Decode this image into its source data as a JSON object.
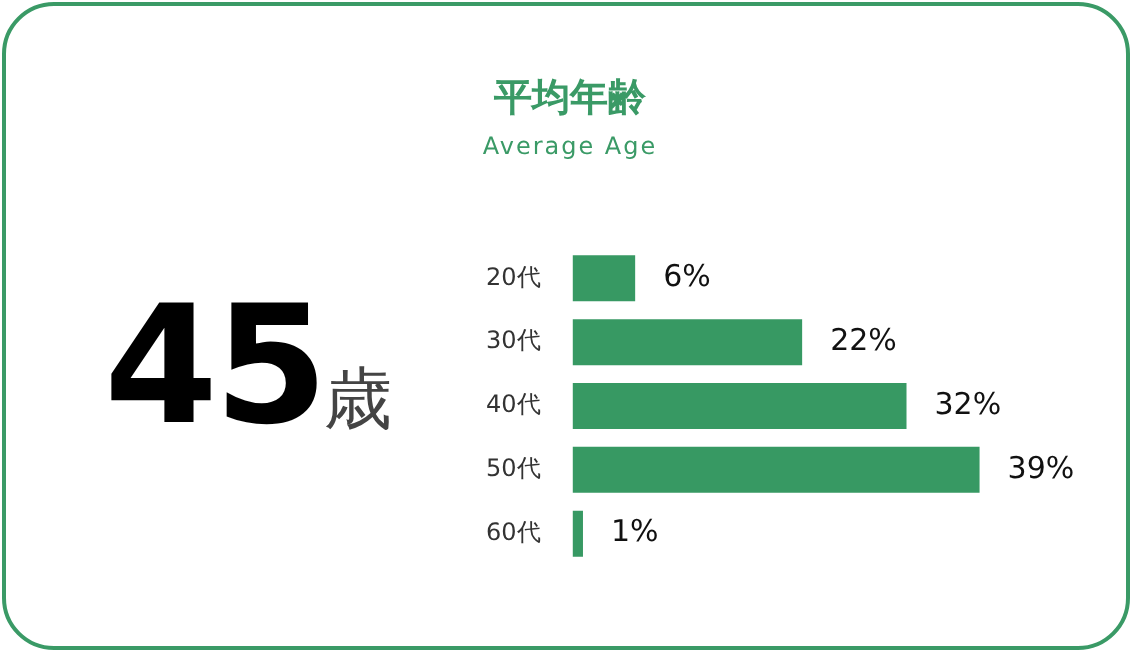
{
  "chart_data": {
    "type": "bar",
    "orientation": "horizontal",
    "title": "平均年齢",
    "subtitle": "Average Age",
    "categories": [
      "20代",
      "30代",
      "40代",
      "50代",
      "60代"
    ],
    "values": [
      6,
      22,
      32,
      39,
      1
    ],
    "value_labels": [
      "6%",
      "22%",
      "32%",
      "39%",
      "1%"
    ],
    "color": "#379963",
    "legend": false,
    "tick_labels": "y",
    "annotations": [
      "45歳"
    ]
  }
}
